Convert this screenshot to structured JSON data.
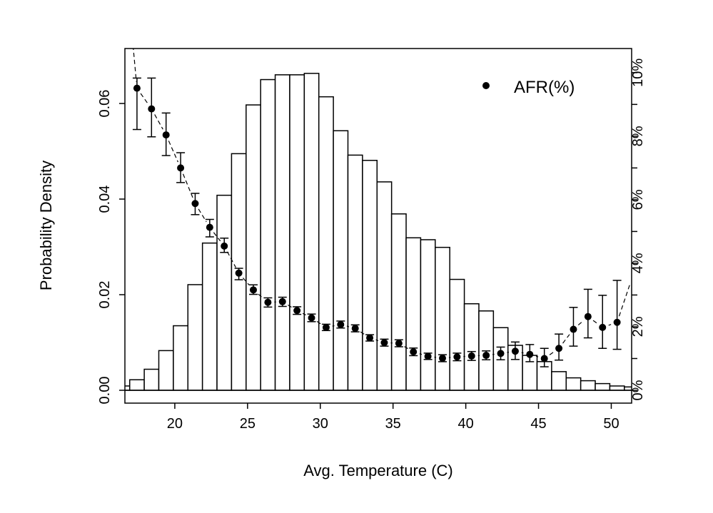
{
  "chart_data": {
    "type": "bar",
    "title": "",
    "xlabel": "Avg. Temperature (C)",
    "ylabel": "Probability Density",
    "xlim": [
      16.57,
      51.4
    ],
    "ylim": [
      0,
      0.0715
    ],
    "y2lim": [
      0,
      10.76
    ],
    "x_ticks": [
      20,
      25,
      30,
      35,
      40,
      45,
      50
    ],
    "x_tick_labels": [
      "20",
      "25",
      "30",
      "35",
      "40",
      "45",
      "50"
    ],
    "y_ticks": [
      0,
      0.02,
      0.04,
      0.06
    ],
    "y_tick_labels": [
      "0.00",
      "0.02",
      "0.04",
      "0.06"
    ],
    "y2_ticks": [
      0,
      1,
      2,
      3,
      4,
      5,
      6,
      7,
      8,
      9,
      10
    ],
    "y2_tick_labels": [
      "0%",
      "2%",
      "4%",
      "6%",
      "8%",
      "10%"
    ],
    "y2_labeled_ticks": [
      0,
      2,
      4,
      6,
      8,
      10
    ],
    "legend": {
      "label": "AFR(%)",
      "placement": "top-right"
    },
    "histogram": {
      "name": "Probability Density",
      "bin_width": 1,
      "bin_starts": [
        15.9,
        16.9,
        17.9,
        18.9,
        19.9,
        20.9,
        21.9,
        22.9,
        23.9,
        24.9,
        25.9,
        26.9,
        27.9,
        28.9,
        29.9,
        30.9,
        31.9,
        32.9,
        33.9,
        34.9,
        35.9,
        36.9,
        37.9,
        38.9,
        39.9,
        40.9,
        41.9,
        42.9,
        43.9,
        44.9,
        45.9,
        46.9,
        47.9,
        48.9,
        49.9,
        50.9
      ],
      "values": [
        0.0009,
        0.0022,
        0.0044,
        0.0083,
        0.0135,
        0.0221,
        0.0308,
        0.0408,
        0.0495,
        0.0597,
        0.065,
        0.066,
        0.066,
        0.0663,
        0.0614,
        0.0543,
        0.0492,
        0.0481,
        0.0436,
        0.0369,
        0.0319,
        0.0315,
        0.0299,
        0.0232,
        0.0181,
        0.0166,
        0.0131,
        0.0094,
        0.0073,
        0.006,
        0.0039,
        0.0026,
        0.002,
        0.0014,
        0.0009,
        0.0007
      ]
    },
    "series": [
      {
        "name": "AFR(%)",
        "axis": "right",
        "x": [
          17.4,
          18.4,
          19.4,
          20.4,
          21.4,
          22.4,
          23.4,
          24.4,
          25.4,
          26.4,
          27.4,
          28.4,
          29.4,
          30.4,
          31.4,
          32.4,
          33.4,
          34.4,
          35.4,
          36.4,
          37.4,
          38.4,
          39.4,
          40.4,
          41.4,
          42.4,
          43.4,
          44.4,
          45.4,
          46.4,
          47.4,
          48.4,
          49.4,
          50.4
        ],
        "values": [
          9.51,
          8.86,
          8.04,
          7.0,
          5.88,
          5.13,
          4.54,
          3.69,
          3.16,
          2.77,
          2.79,
          2.51,
          2.28,
          1.98,
          2.07,
          1.95,
          1.65,
          1.5,
          1.48,
          1.21,
          1.07,
          1.01,
          1.05,
          1.08,
          1.1,
          1.16,
          1.23,
          1.13,
          1.0,
          1.32,
          1.92,
          2.32,
          1.98,
          2.14
        ],
        "lower": [
          8.21,
          7.98,
          7.39,
          6.54,
          5.53,
          4.83,
          4.34,
          3.48,
          3.02,
          2.62,
          2.64,
          2.39,
          2.16,
          1.88,
          1.96,
          1.84,
          1.55,
          1.39,
          1.37,
          1.09,
          0.97,
          0.9,
          0.93,
          0.94,
          0.96,
          0.96,
          0.97,
          0.9,
          0.74,
          0.95,
          1.39,
          1.65,
          1.32,
          1.29
        ],
        "upper": [
          9.83,
          9.83,
          8.73,
          7.48,
          6.2,
          5.38,
          4.79,
          3.84,
          3.32,
          2.91,
          2.93,
          2.63,
          2.4,
          2.08,
          2.18,
          2.06,
          1.75,
          1.61,
          1.59,
          1.33,
          1.17,
          1.12,
          1.17,
          1.22,
          1.24,
          1.36,
          1.52,
          1.44,
          1.32,
          1.77,
          2.61,
          3.18,
          2.99,
          3.46
        ]
      }
    ]
  }
}
